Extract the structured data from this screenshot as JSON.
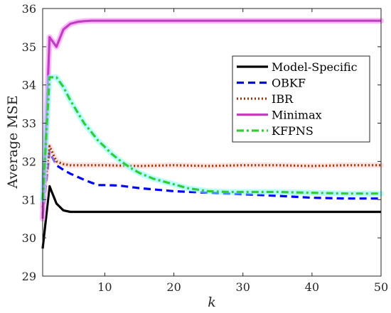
{
  "chart_data": {
    "type": "line",
    "title": "",
    "xlabel": "k",
    "ylabel": "Average MSE",
    "xlim": [
      1,
      50
    ],
    "ylim": [
      29,
      36
    ],
    "xticks": [
      10,
      20,
      30,
      40,
      50
    ],
    "yticks": [
      29,
      30,
      31,
      32,
      33,
      34,
      35,
      36
    ],
    "grid": false,
    "legend_position": "top-right",
    "series": [
      {
        "name": "Model-Specific",
        "color": "#000000",
        "style": "solid",
        "halo": "#ffffff",
        "x": [
          1,
          2,
          3,
          4,
          5,
          6,
          8,
          10,
          15,
          20,
          30,
          40,
          50
        ],
        "y": [
          29.72,
          31.35,
          30.9,
          30.72,
          30.68,
          30.68,
          30.68,
          30.68,
          30.68,
          30.68,
          30.68,
          30.68,
          30.68
        ]
      },
      {
        "name": "OBKF",
        "color": "#0000ff",
        "style": "dash",
        "halo": "#ffffff",
        "x": [
          1,
          2,
          3,
          4,
          5,
          6,
          7,
          8,
          9,
          10,
          12,
          15,
          20,
          25,
          30,
          35,
          40,
          45,
          50
        ],
        "y": [
          30.6,
          32.25,
          31.9,
          31.78,
          31.68,
          31.6,
          31.52,
          31.45,
          31.38,
          31.38,
          31.37,
          31.3,
          31.22,
          31.18,
          31.14,
          31.1,
          31.05,
          31.03,
          31.03
        ]
      },
      {
        "name": "IBR",
        "color": "#993300",
        "style": "dot",
        "halo": "#ffcccc",
        "x": [
          1,
          2,
          3,
          4,
          5,
          6,
          8,
          10,
          15,
          20,
          25,
          30,
          35,
          40,
          45,
          50
        ],
        "y": [
          30.8,
          32.4,
          32.0,
          31.93,
          31.9,
          31.9,
          31.9,
          31.9,
          31.88,
          31.9,
          31.88,
          31.9,
          31.9,
          31.88,
          31.9,
          31.9
        ]
      },
      {
        "name": "Minimax",
        "color": "#bf40bf",
        "style": "solid",
        "halo": "#ff80ff",
        "x": [
          1,
          2,
          3,
          4,
          5,
          6,
          7,
          8,
          10,
          15,
          20,
          25,
          30,
          35,
          40,
          45,
          50
        ],
        "y": [
          30.5,
          35.25,
          35.0,
          35.45,
          35.6,
          35.65,
          35.67,
          35.68,
          35.68,
          35.68,
          35.68,
          35.68,
          35.68,
          35.68,
          35.68,
          35.68,
          35.68
        ]
      },
      {
        "name": "KFPNS",
        "color": "#33cc33",
        "style": "dashdot",
        "halo": "#80ffff",
        "x": [
          1,
          2,
          3,
          4,
          5,
          6,
          7,
          8,
          9,
          10,
          11,
          12,
          13,
          14,
          15,
          17,
          20,
          22,
          25,
          28,
          30,
          35,
          40,
          45,
          50
        ],
        "y": [
          31.0,
          34.2,
          34.2,
          33.95,
          33.6,
          33.3,
          33.0,
          32.78,
          32.55,
          32.38,
          32.2,
          32.05,
          31.92,
          31.8,
          31.7,
          31.55,
          31.4,
          31.3,
          31.22,
          31.2,
          31.2,
          31.2,
          31.18,
          31.16,
          31.16
        ]
      }
    ]
  }
}
